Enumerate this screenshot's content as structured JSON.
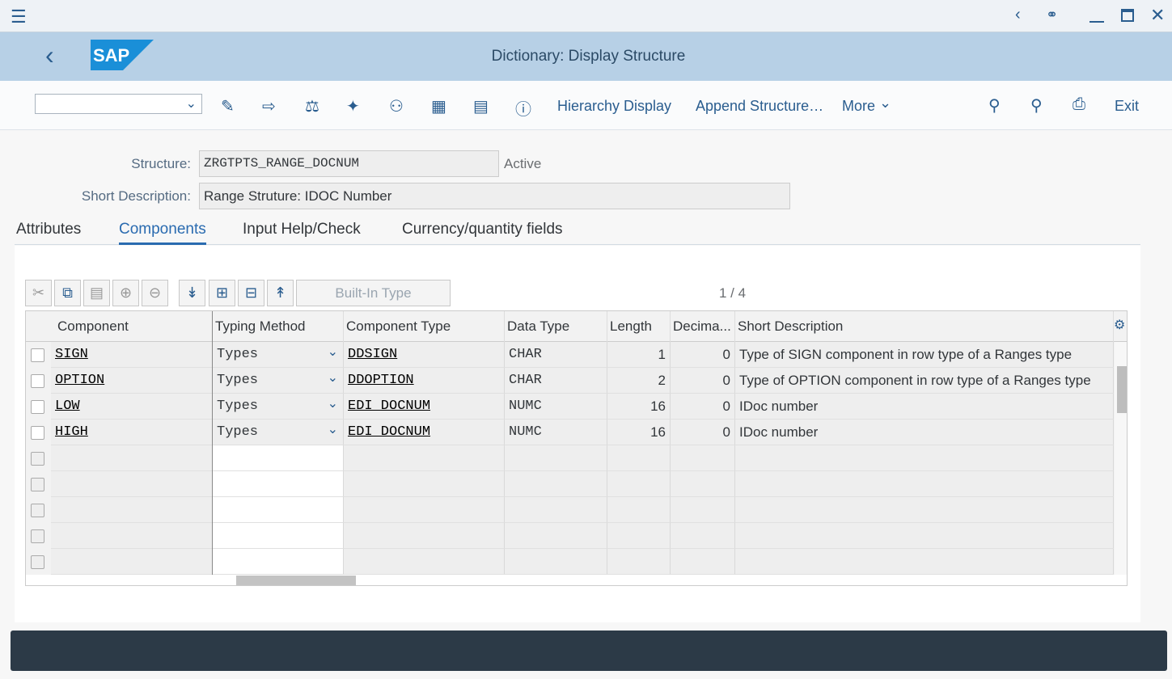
{
  "window": {
    "logo": "SAP",
    "title": "Dictionary: Display Structure"
  },
  "toolbar": {
    "hierarchy": "Hierarchy Display",
    "append": "Append Structure…",
    "more": "More",
    "exit": "Exit"
  },
  "form": {
    "structure_label": "Structure:",
    "structure_value": "ZRGTPTS_RANGE_DOCNUM",
    "status": "Active",
    "description_label": "Short Description:",
    "description_value": "Range Struture: IDOC Number"
  },
  "tabs": [
    "Attributes",
    "Components",
    "Input Help/Check",
    "Currency/quantity fields"
  ],
  "table_toolbar": {
    "builtin_type": "Built-In Type",
    "page_counter": "1 / 4"
  },
  "table": {
    "headers": [
      "Component",
      "Typing Method",
      "Component Type",
      "Data Type",
      "Length",
      "Decima...",
      "Short Description"
    ],
    "rows": [
      [
        "SIGN",
        "Types",
        "DDSIGN",
        "CHAR",
        1,
        0,
        "Type of SIGN component in row type of a Ranges type"
      ],
      [
        "OPTION",
        "Types",
        "DDOPTION",
        "CHAR",
        2,
        0,
        "Type of OPTION component in row type of a Ranges type"
      ],
      [
        "LOW",
        "Types",
        "EDI_DOCNUM",
        "NUMC",
        16,
        0,
        "IDoc number"
      ],
      [
        "HIGH",
        "Types",
        "EDI_DOCNUM",
        "NUMC",
        16,
        0,
        "IDoc number"
      ]
    ]
  }
}
